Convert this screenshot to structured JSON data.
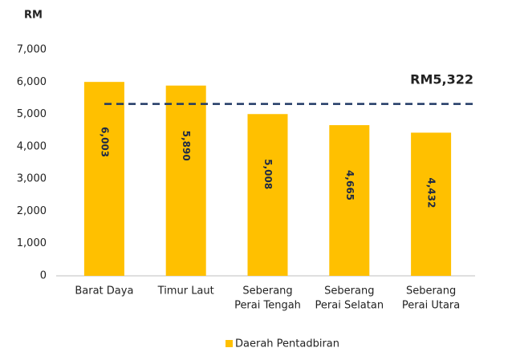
{
  "chart_data": {
    "type": "bar",
    "y_axis_label": "RM",
    "categories": [
      [
        "Barat Daya"
      ],
      [
        "Timur Laut"
      ],
      [
        "Seberang",
        "Perai Tengah"
      ],
      [
        "Seberang",
        "Perai Selatan"
      ],
      [
        "Seberang",
        "Perai Utara"
      ]
    ],
    "series": [
      {
        "name": "Daerah Pentadbiran",
        "color": "#ffc000",
        "values": [
          6003,
          5890,
          5008,
          4665,
          4432
        ],
        "value_labels": [
          "6,003",
          "5,890",
          "5,008",
          "4,665",
          "4,432"
        ]
      }
    ],
    "reference_line": {
      "value": 5322,
      "label": "RM5,322",
      "color": "#1f3864"
    },
    "ylim": [
      0,
      7000
    ],
    "yticks": [
      0,
      {
        "value": 1000,
        "label": "1,000"
      },
      {
        "value": 2000,
        "label": "2,000"
      },
      {
        "value": 3000,
        "label": "3,000"
      },
      {
        "value": 4000,
        "label": "4,000"
      },
      {
        "value": 5000,
        "label": "5,000"
      },
      {
        "value": 6000,
        "label": "6,000"
      },
      {
        "value": 7000,
        "label": "7,000"
      }
    ],
    "grid": false,
    "legend": "bottom"
  }
}
